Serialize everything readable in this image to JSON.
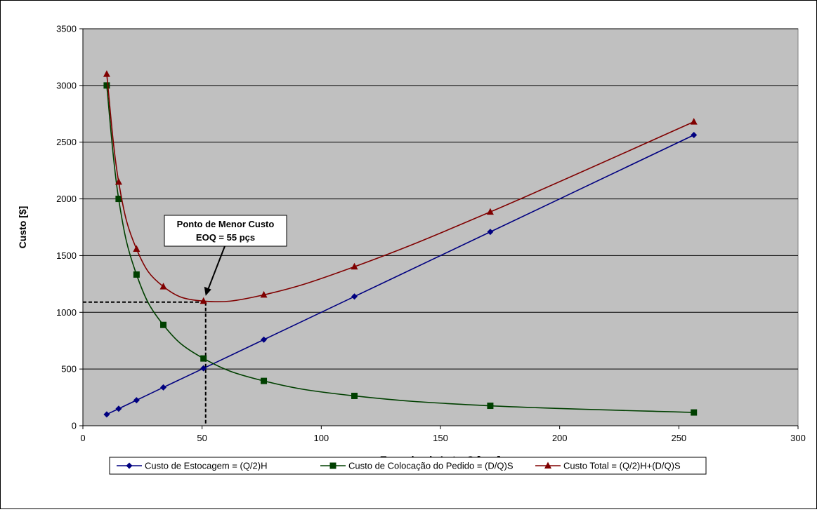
{
  "chart_data": {
    "type": "scatter",
    "xlabel": "Tamanho de Lote, Q [pçs]",
    "ylabel": "Custo [$]",
    "xlim": [
      0,
      300
    ],
    "ylim": [
      0,
      3500
    ],
    "x_ticks": [
      0,
      50,
      100,
      150,
      200,
      250,
      300
    ],
    "y_ticks": [
      0,
      500,
      1000,
      1500,
      2000,
      2500,
      3000,
      3500
    ],
    "grid": "horizontal",
    "plot_background": "#c0c0c0",
    "legend_position": "bottom",
    "series": [
      {
        "name": "Custo de Estocagem = (Q/2)H",
        "color": "#000080",
        "marker": "diamond",
        "x": [
          10,
          15,
          22.5,
          33.75,
          50.6,
          75.9,
          113.9,
          170.9,
          256.3
        ],
        "y": [
          100,
          150,
          225,
          338,
          506,
          759,
          1139,
          1709,
          2563
        ]
      },
      {
        "name": "Custo de Colocação do Pedido = (D/Q)S",
        "color": "#004000",
        "marker": "square",
        "x": [
          10,
          15,
          22.5,
          33.75,
          50.6,
          75.9,
          113.9,
          170.9,
          256.3
        ],
        "y": [
          3000,
          2000,
          1333,
          889,
          593,
          395,
          263,
          176,
          117
        ]
      },
      {
        "name": "Custo Total = (Q/2)H+(D/Q)S",
        "color": "#800000",
        "marker": "triangle",
        "x": [
          10,
          15,
          22.5,
          33.75,
          50.6,
          75.9,
          113.9,
          170.9,
          256.3
        ],
        "y": [
          3100,
          2150,
          1558,
          1227,
          1099,
          1154,
          1402,
          1885,
          2680
        ]
      }
    ],
    "annotation": {
      "lines": [
        "Ponto de Menor Custo",
        "EOQ = 55 pçs"
      ],
      "point_x": 51.5,
      "point_y": 1090
    }
  }
}
